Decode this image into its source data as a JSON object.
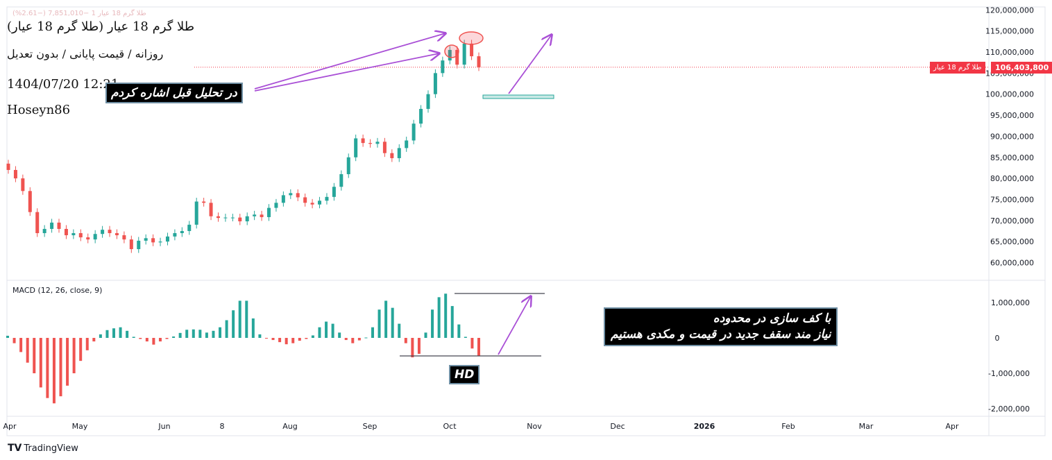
{
  "header": {
    "ghost_line": "طلا گرم 18 عیار 1  −7,851,010 (−2.61%)",
    "title": "طلا گرم 18 عیار (طلا گرم 18 عیار)",
    "subtitle": "روزانه / قیمت پایانی / بدون تعدیل",
    "datetime": "1404/07/20 12:21",
    "author": "Hoseyn86"
  },
  "price_scale": {
    "current_price": "106,403,800",
    "current_label": "طلا گرم 18 عیار",
    "ticks": [
      "120,000,000",
      "115,000,000",
      "110,000,000",
      "105,000,000",
      "100,000,000",
      "95,000,000",
      "90,000,000",
      "85,000,000",
      "80,000,000",
      "75,000,000",
      "70,000,000",
      "65,000,000",
      "60,000,000"
    ]
  },
  "macd_scale": {
    "ticks": [
      "1,000,000",
      "0",
      "-1,000,000",
      "-2,000,000"
    ]
  },
  "time_axis": {
    "labels": [
      "Apr",
      "May",
      "Jun",
      "8",
      "Aug",
      "Sep",
      "Oct",
      "Nov",
      "Dec",
      "2026",
      "Feb",
      "Mar",
      "Apr"
    ]
  },
  "macd": {
    "label": "MACD (12, 26, close, 9)"
  },
  "annotations": {
    "note1": "در تحلیل قبل اشاره کردم",
    "note2_line1": "با کف سازی در محدوده",
    "note2_line2": "نیاز مند سقف جدید در قیمت و مکدی هستیم",
    "hd": "HD"
  },
  "brand": {
    "logo": "TV",
    "name": "TradingView"
  },
  "colors": {
    "up": "#26a69a",
    "down": "#ef5350",
    "arrow": "#a94fd6",
    "price_line": "#f23645"
  },
  "chart_data": [
    {
      "type": "candlestick",
      "title": "طلا گرم 18 عیار",
      "x_range": [
        "2025-04-01",
        "2026-04-30"
      ],
      "ylim": [
        57500000,
        122000000
      ],
      "last_close": 106403800,
      "series": [
        {
          "values": [
            82000000,
            80000000,
            77000000,
            72000000,
            67000000,
            68000000,
            69500000,
            68000000,
            66500000,
            67000000,
            66000000,
            65500000,
            66800000,
            67800000,
            67000000,
            66500000,
            65500000,
            63200000,
            65200000,
            65800000,
            64800000,
            65000000,
            66200000,
            67000000,
            67500000,
            69000000,
            74500000,
            74200000,
            71000000,
            70600000,
            70700000,
            70700000,
            69800000,
            71000000,
            71400000,
            70800000,
            73000000,
            74200000,
            76000000,
            76500000,
            75500000,
            74200000,
            73800000,
            74700000,
            75600000,
            78000000,
            81000000,
            85000000,
            89500000,
            88400000,
            88200000,
            88700000,
            86000000,
            84800000,
            87200000,
            89000000,
            93000000,
            96500000,
            100000000,
            105000000,
            108000000,
            110500000,
            107000000,
            112000000,
            109000000,
            106400000
          ]
        }
      ]
    },
    {
      "type": "bar",
      "title": "MACD (12, 26, close, 9)",
      "ylim": [
        -2200000,
        1500000
      ],
      "series": [
        {
          "name": "Histogram",
          "values": [
            60000,
            -150000,
            -400000,
            -700000,
            -1000000,
            -1400000,
            -1700000,
            -1850000,
            -1650000,
            -1350000,
            -1000000,
            -650000,
            -350000,
            -100000,
            100000,
            220000,
            270000,
            300000,
            200000,
            30000,
            -30000,
            -100000,
            -190000,
            -100000,
            -30000,
            40000,
            140000,
            230000,
            240000,
            230000,
            150000,
            200000,
            300000,
            500000,
            780000,
            1050000,
            1050000,
            550000,
            100000,
            -20000,
            -60000,
            -120000,
            -180000,
            -150000,
            -80000,
            -30000,
            70000,
            300000,
            460000,
            400000,
            150000,
            -60000,
            -150000,
            -70000,
            10000,
            300000,
            800000,
            1050000,
            850000,
            400000,
            -150000,
            -550000,
            -450000,
            150000,
            800000,
            1150000,
            1250000,
            900000,
            380000,
            30000,
            -300000,
            -500000
          ]
        }
      ]
    }
  ]
}
